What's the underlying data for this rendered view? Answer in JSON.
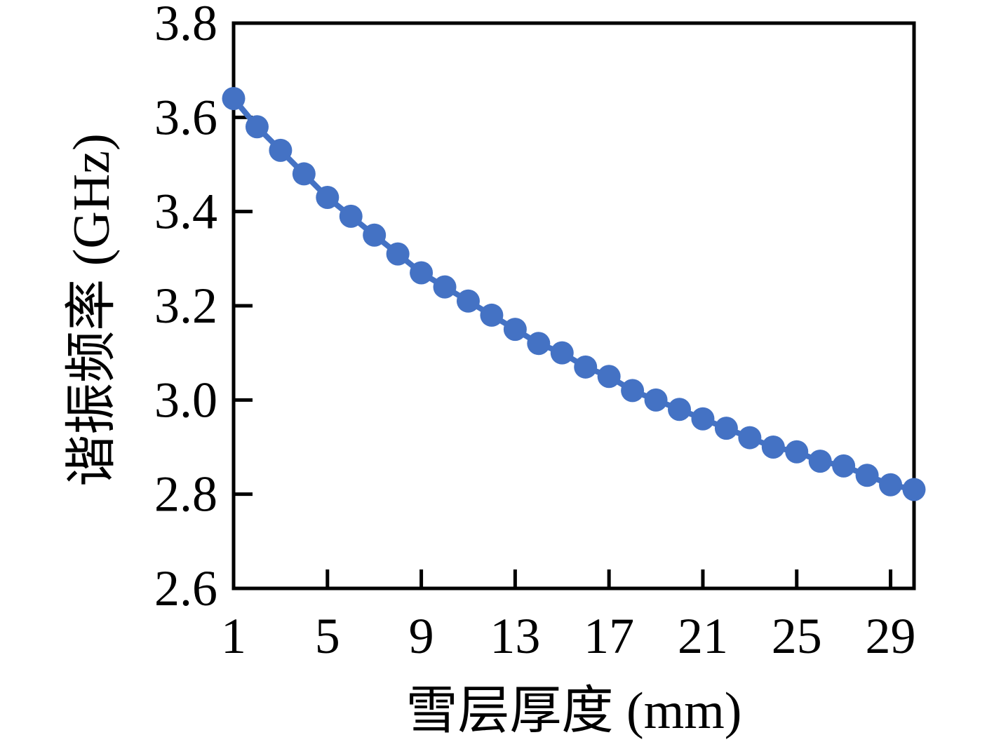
{
  "chart_data": {
    "type": "line",
    "title": "",
    "xlabel": "雪层厚度 (mm)",
    "ylabel": "谐振频率 (GHz)",
    "x": [
      1,
      2,
      3,
      4,
      5,
      6,
      7,
      8,
      9,
      10,
      11,
      12,
      13,
      14,
      15,
      16,
      17,
      18,
      19,
      20,
      21,
      22,
      23,
      24,
      25,
      26,
      27,
      28,
      29,
      30
    ],
    "y": [
      3.64,
      3.58,
      3.53,
      3.48,
      3.43,
      3.39,
      3.35,
      3.31,
      3.27,
      3.24,
      3.21,
      3.18,
      3.15,
      3.12,
      3.1,
      3.07,
      3.05,
      3.02,
      3.0,
      2.98,
      2.96,
      2.94,
      2.92,
      2.9,
      2.89,
      2.87,
      2.86,
      2.84,
      2.82,
      2.81
    ],
    "xlim": [
      1,
      30
    ],
    "ylim": [
      2.6,
      3.8
    ],
    "x_tick_labels": [
      "1",
      "5",
      "9",
      "13",
      "17",
      "21",
      "25",
      "29"
    ],
    "x_tick_label_values": [
      1,
      5,
      9,
      13,
      17,
      21,
      25,
      29
    ],
    "x_tickmark_values": [
      5,
      9,
      13,
      17,
      21,
      25,
      29
    ],
    "y_tick_labels": [
      "3.8",
      "3.6",
      "3.4",
      "3.2",
      "3.0",
      "2.8",
      "2.6"
    ],
    "y_tick_label_values": [
      3.8,
      3.6,
      3.4,
      3.2,
      3.0,
      2.8,
      2.6
    ],
    "y_tickmark_values": [
      3.6,
      3.4,
      3.2,
      3.0,
      2.8
    ],
    "grid": false,
    "legend_position": "none",
    "marker_color": "#4472C4",
    "line_color": "#4472C4",
    "axis_color": "#000000",
    "background_color": "#FFFFFF"
  }
}
